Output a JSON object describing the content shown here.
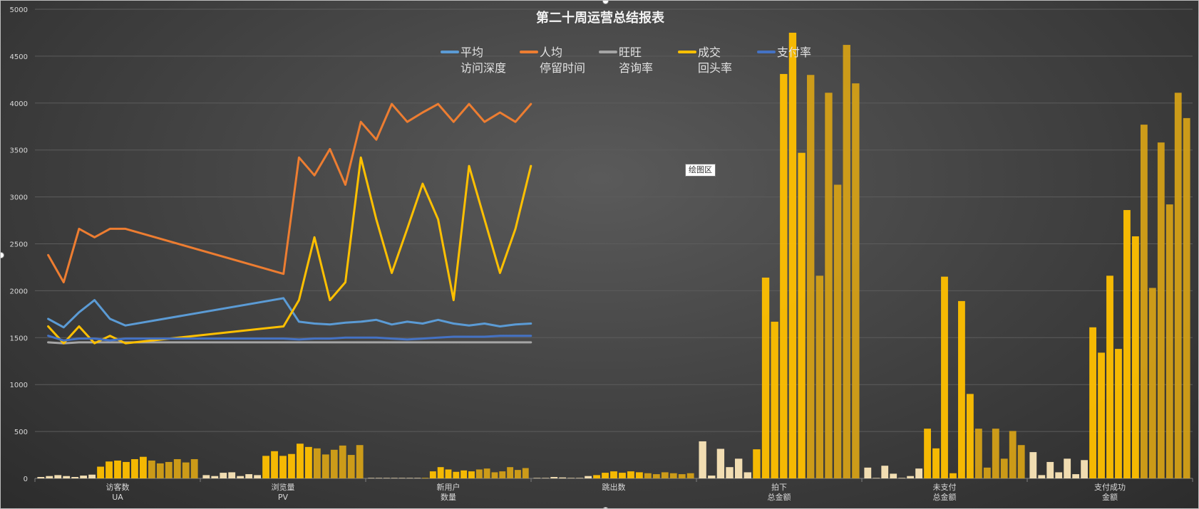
{
  "colors": {
    "bg": "#404040",
    "grid": "#5a5a5a",
    "axis_text": "#d9d9d9",
    "series": [
      "#5b9bd5",
      "#ed7d31",
      "#a5a5a5",
      "#ffc000",
      "#4472c4"
    ]
  },
  "tooltip": "绘图区",
  "chart_data": {
    "type": "bar",
    "title": "第二十周运营总结报表",
    "ylim": [
      0,
      5000
    ],
    "yticks": [
      "0",
      "500",
      "1000",
      "1500",
      "2000",
      "2500",
      "3000",
      "3500",
      "4000",
      "4500",
      "5000"
    ],
    "grid": true,
    "legend_position": "top-center",
    "categories": [
      {
        "line1": "访客数",
        "line2": "UA"
      },
      {
        "line1": "浏览量",
        "line2": "PV"
      },
      {
        "line1": "新用户",
        "line2": "数量"
      },
      {
        "line1": "跳出数",
        "line2": ""
      },
      {
        "line1": "拍下",
        "line2": "总金额"
      },
      {
        "line1": "未支付",
        "line2": "总金额"
      },
      {
        "line1": "支付成功",
        "line2": "金额"
      }
    ],
    "bar_groups": [
      [
        15,
        25,
        35,
        25,
        15,
        30,
        40,
        125,
        180,
        190,
        175,
        205,
        230,
        190,
        160,
        175,
        205,
        170,
        205
      ],
      [
        35,
        25,
        60,
        65,
        25,
        45,
        35,
        240,
        290,
        240,
        260,
        370,
        335,
        320,
        255,
        305,
        350,
        250,
        355
      ],
      [
        5,
        5,
        5,
        5,
        5,
        5,
        5,
        5,
        75,
        120,
        95,
        70,
        85,
        75,
        95,
        105,
        65,
        75,
        120,
        90,
        110
      ],
      [
        5,
        5,
        15,
        10,
        5,
        5,
        25,
        35,
        60,
        75,
        60,
        75,
        65,
        55,
        45,
        65,
        55,
        45,
        55
      ],
      [
        395,
        30,
        315,
        120,
        210,
        65,
        310,
        2140,
        1670,
        4310,
        4750,
        3470,
        4300,
        2160,
        4110,
        3130,
        4620,
        4210
      ],
      [
        115,
        5,
        135,
        50,
        5,
        25,
        105,
        530,
        320,
        2150,
        55,
        1890,
        900,
        530,
        115,
        530,
        210,
        505,
        355
      ],
      [
        280,
        35,
        175,
        65,
        210,
        45,
        195,
        1610,
        1340,
        2160,
        1380,
        2860,
        2580,
        3770,
        2030,
        3580,
        2920,
        4110,
        3840
      ]
    ],
    "series": [
      {
        "name": "平均 访问深度",
        "color": "#5b9bd5",
        "x": [
          0,
          0.45,
          0.9,
          1.35,
          1.8,
          2.25,
          6.85,
          7.3,
          7.75,
          8.2,
          8.65,
          9.1,
          9.55,
          10.0,
          10.45,
          10.9,
          11.35,
          11.8,
          12.25,
          12.7,
          13.15,
          13.6,
          14.05
        ],
        "values": [
          1700,
          1610,
          1770,
          1900,
          1700,
          1630,
          1920,
          1670,
          1650,
          1640,
          1660,
          1670,
          1690,
          1640,
          1670,
          1650,
          1690,
          1650,
          1630,
          1650,
          1620,
          1640,
          1650
        ]
      },
      {
        "name": "人均 停留时间",
        "color": "#ed7d31",
        "x": [
          0,
          0.45,
          0.9,
          1.35,
          1.8,
          2.25,
          6.85,
          7.3,
          7.75,
          8.2,
          8.65,
          9.1,
          9.55,
          10.0,
          10.45,
          10.9,
          11.35,
          11.8,
          12.25,
          12.7,
          13.15,
          13.6,
          14.05
        ],
        "values": [
          2380,
          2090,
          2660,
          2570,
          2660,
          2660,
          2180,
          3420,
          3230,
          3510,
          3130,
          3800,
          3610,
          3990,
          3800,
          3900,
          3990,
          3800,
          3990,
          3800,
          3900,
          3800,
          3990
        ]
      },
      {
        "name": "旺旺 咨询率",
        "color": "#a5a5a5",
        "x": [
          0,
          0.45,
          0.9,
          1.35,
          1.8,
          2.25,
          14.05
        ],
        "values": [
          1450,
          1440,
          1450,
          1450,
          1450,
          1450,
          1450
        ]
      },
      {
        "name": "成交 回头率",
        "color": "#ffc000",
        "x": [
          0,
          0.45,
          0.9,
          1.35,
          1.8,
          2.25,
          6.85,
          7.3,
          7.75,
          8.2,
          8.65,
          9.1,
          9.55,
          10.0,
          10.45,
          10.9,
          11.35,
          11.8,
          12.25,
          12.7,
          13.15,
          13.6,
          14.05
        ],
        "values": [
          1620,
          1440,
          1620,
          1440,
          1520,
          1440,
          1620,
          1900,
          2570,
          1900,
          2090,
          3420,
          2760,
          2190,
          2660,
          3140,
          2760,
          1900,
          3330,
          2760,
          2190,
          2660,
          3330
        ]
      },
      {
        "name": "支付率",
        "color": "#4472c4",
        "x": [
          0,
          0.45,
          0.9,
          1.35,
          1.8,
          2.25,
          6.85,
          7.3,
          7.75,
          8.2,
          8.65,
          9.1,
          9.55,
          10.0,
          10.45,
          10.9,
          11.35,
          11.8,
          12.25,
          12.7,
          13.15,
          13.6,
          14.05
        ],
        "values": [
          1520,
          1470,
          1490,
          1490,
          1470,
          1490,
          1490,
          1480,
          1490,
          1490,
          1500,
          1500,
          1500,
          1490,
          1480,
          1490,
          1500,
          1510,
          1510,
          1510,
          1520,
          1520,
          1520
        ]
      }
    ]
  },
  "legend": [
    {
      "line1": "平均",
      "line2": "访问深度",
      "color": "#5b9bd5"
    },
    {
      "line1": "人均",
      "line2": "停留时间",
      "color": "#ed7d31"
    },
    {
      "line1": "旺旺",
      "line2": "咨询率",
      "color": "#a5a5a5"
    },
    {
      "line1": "成交",
      "line2": "回头率",
      "color": "#ffc000"
    },
    {
      "line1": "支付率",
      "line2": "",
      "color": "#4472c4"
    }
  ]
}
